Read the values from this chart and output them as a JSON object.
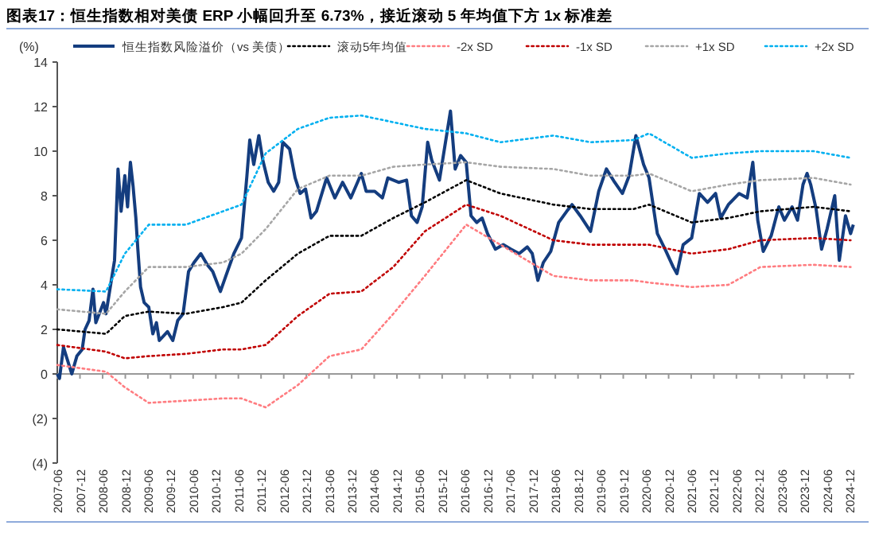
{
  "chart_data": {
    "type": "line",
    "title": "图表17：恒生指数相对美债 ERP 小幅回升至 6.73%，接近滚动 5 年均值下方 1x 标准差",
    "ylabel": "(%)",
    "legend": "top",
    "xlim": [
      "2007-06-01",
      "2025-01-07"
    ],
    "ylim": [
      -4,
      14
    ],
    "yticks": [
      {
        "value": -4,
        "label": "(4)"
      },
      {
        "value": -2,
        "label": "(2)"
      },
      0,
      2,
      4,
      6,
      8,
      10,
      12,
      14
    ],
    "xticks": [
      "2007-06",
      "2007-12",
      "2008-06",
      "2008-12",
      "2009-06",
      "2009-12",
      "2010-06",
      "2010-12",
      "2011-06",
      "2011-12",
      "2012-06",
      "2012-12",
      "2013-06",
      "2013-12",
      "2014-06",
      "2014-12",
      "2015-06",
      "2015-12",
      "2016-06",
      "2016-12",
      "2017-06",
      "2017-12",
      "2018-06",
      "2018-12",
      "2019-06",
      "2019-12",
      "2020-06",
      "2020-12",
      "2021-06",
      "2021-12",
      "2022-06",
      "2022-12",
      "2023-06",
      "2023-12",
      "2024-06",
      "2024-12"
    ],
    "series": [
      {
        "name": "恒生指数风险溢价（vs 美债）",
        "color": "#143d7f",
        "line_style": "solid",
        "x": [
          "2007-06-01",
          "2007-06-19",
          "2007-07-21",
          "2007-09-26",
          "2007-11-06",
          "2007-12-19",
          "2008-01-11",
          "2008-02-13",
          "2008-03-15",
          "2008-04-07",
          "2008-06-08",
          "2008-06-28",
          "2008-08-13",
          "2008-09-05",
          "2008-10-03",
          "2008-10-28",
          "2008-11-27",
          "2008-12-19",
          "2009-01-11",
          "2009-02-02",
          "2009-02-24",
          "2009-03-12",
          "2009-04-03",
          "2009-05-02",
          "2009-06-08",
          "2009-07-11",
          "2009-08-09",
          "2009-09-01",
          "2009-11-06",
          "2009-12-19",
          "2010-01-28",
          "2010-03-12",
          "2010-04-25",
          "2010-06-08",
          "2010-08-02",
          "2010-09-23",
          "2010-11-06",
          "2011-01-07",
          "2011-02-20",
          "2011-04-25",
          "2011-06-26",
          "2011-07-18",
          "2011-08-09",
          "2011-09-01",
          "2011-10-03",
          "2011-11-13",
          "2011-12-15",
          "2012-01-28",
          "2012-03-12",
          "2012-04-21",
          "2012-05-24",
          "2012-07-18",
          "2012-09-01",
          "2012-10-11",
          "2012-11-24",
          "2013-01-07",
          "2013-02-20",
          "2013-05-13",
          "2013-07-18",
          "2013-09-19",
          "2013-11-24",
          "2014-02-17",
          "2014-03-28",
          "2014-06-05",
          "2014-08-06",
          "2014-09-19",
          "2014-12-15",
          "2015-02-17",
          "2015-03-28",
          "2015-05-13",
          "2015-06-23",
          "2015-08-06",
          "2015-09-08",
          "2015-11-09",
          "2016-02-06",
          "2016-03-15",
          "2016-04-28",
          "2016-06-12",
          "2016-07-21",
          "2016-09-05",
          "2016-10-18",
          "2016-12-01",
          "2017-02-02",
          "2017-04-07",
          "2017-06-08",
          "2017-08-13",
          "2017-10-18",
          "2017-11-27",
          "2018-01-11",
          "2018-02-24",
          "2018-04-25",
          "2018-06-28",
          "2018-09-01",
          "2018-10-14",
          "2018-12-19",
          "2019-03-12",
          "2019-05-17",
          "2019-07-18",
          "2019-09-23",
          "2019-11-24",
          "2020-01-18",
          "2020-03-12",
          "2020-05-13",
          "2020-06-26",
          "2020-09-01",
          "2020-11-02",
          "2021-01-07",
          "2021-02-06",
          "2021-03-28",
          "2021-06-05",
          "2021-08-06",
          "2021-10-11",
          "2021-12-15",
          "2022-01-25",
          "2022-03-28",
          "2022-06-23",
          "2022-08-27",
          "2022-10-11",
          "2022-11-20",
          "2023-01-03",
          "2023-03-08",
          "2023-05-09",
          "2023-06-23",
          "2023-08-24",
          "2023-10-07",
          "2023-11-20",
          "2023-12-23",
          "2024-01-21",
          "2024-03-05",
          "2024-04-18",
          "2024-06-01",
          "2024-08-02",
          "2024-09-08",
          "2024-10-28",
          "2024-12-08",
          "2024-12-30"
        ],
        "values": [
          0,
          -0.2,
          1.2,
          0,
          0.8,
          1.1,
          2.0,
          2.4,
          3.8,
          2.3,
          3.2,
          2.7,
          4.3,
          5.1,
          9.2,
          7.3,
          8.9,
          7.5,
          9.5,
          8.4,
          7.0,
          5.6,
          3.9,
          3.2,
          3.0,
          1.8,
          2.3,
          1.5,
          1.9,
          1.5,
          2.4,
          2.7,
          4.6,
          5.0,
          5.4,
          4.9,
          4.6,
          3.7,
          4.4,
          5.4,
          6.1,
          7.5,
          8.9,
          10.5,
          9.4,
          10.7,
          9.6,
          8.6,
          8.2,
          8.6,
          10.4,
          10.1,
          8.8,
          8.1,
          8.3,
          7.0,
          7.3,
          8.8,
          7.9,
          8.6,
          7.9,
          9.0,
          8.2,
          8.2,
          7.9,
          8.8,
          8.6,
          8.7,
          7.1,
          6.8,
          7.5,
          10.4,
          9.6,
          8.7,
          11.8,
          9.2,
          9.8,
          9.5,
          7.1,
          6.8,
          7.0,
          6.3,
          5.6,
          5.8,
          5.6,
          5.4,
          5.7,
          5.4,
          4.2,
          5.0,
          5.5,
          6.8,
          7.3,
          7.6,
          7.1,
          6.4,
          8.2,
          9.2,
          8.6,
          8.1,
          8.9,
          10.7,
          9.4,
          8.8,
          6.3,
          5.6,
          4.8,
          4.5,
          5.8,
          6.1,
          8.1,
          7.7,
          8.1,
          7.0,
          7.6,
          8.1,
          7.9,
          9.5,
          6.9,
          5.5,
          6.2,
          7.5,
          6.9,
          7.5,
          6.9,
          8.5,
          9.0,
          8.5,
          7.4,
          5.6,
          6.5,
          8.0,
          5.1,
          7.1,
          6.3,
          6.7
        ]
      },
      {
        "name": "滚动5年均值",
        "color": "#000000",
        "line_style": "dotted",
        "x": [
          "2007-06-01",
          "2008-06-28",
          "2008-11-27",
          "2009-06-08",
          "2010-04-03",
          "2011-01-28",
          "2011-06-26",
          "2012-01-07",
          "2012-09-23",
          "2013-06-05",
          "2014-02-17",
          "2014-11-02",
          "2015-07-14",
          "2016-06-12",
          "2017-03-15",
          "2018-05-17",
          "2019-03-12",
          "2020-02-20",
          "2020-06-26",
          "2021-06-05",
          "2022-03-28",
          "2022-12-12",
          "2024-02-13",
          "2024-12-08"
        ],
        "values": [
          2.0,
          1.8,
          2.6,
          2.8,
          2.7,
          3.0,
          3.2,
          4.2,
          5.4,
          6.2,
          6.2,
          7.0,
          7.7,
          8.7,
          8.1,
          7.6,
          7.4,
          7.4,
          7.6,
          6.8,
          7.0,
          7.3,
          7.5,
          7.3
        ]
      },
      {
        "name": "-2x SD",
        "color": "#ff7c80",
        "line_style": "dotted",
        "x": [
          "2007-06-01",
          "2008-06-28",
          "2008-11-27",
          "2009-06-08",
          "2010-04-03",
          "2011-01-28",
          "2011-06-26",
          "2012-01-07",
          "2012-09-23",
          "2013-06-05",
          "2014-02-17",
          "2014-11-02",
          "2015-07-14",
          "2016-06-12",
          "2017-03-15",
          "2018-05-17",
          "2019-03-12",
          "2020-02-20",
          "2020-06-26",
          "2021-06-05",
          "2022-03-28",
          "2022-12-12",
          "2024-02-13",
          "2024-12-08"
        ],
        "values": [
          0.4,
          0.1,
          -0.6,
          -1.3,
          -1.2,
          -1.1,
          -1.1,
          -1.5,
          -0.5,
          0.8,
          1.1,
          2.7,
          4.4,
          6.7,
          5.8,
          4.4,
          4.2,
          4.2,
          4.1,
          3.9,
          4.0,
          4.8,
          4.9,
          4.8
        ]
      },
      {
        "name": "-1x SD",
        "color": "#c00000",
        "line_style": "dotted",
        "x": [
          "2007-06-01",
          "2008-06-28",
          "2008-11-27",
          "2009-06-08",
          "2010-04-03",
          "2011-01-28",
          "2011-06-26",
          "2012-01-07",
          "2012-09-23",
          "2013-06-05",
          "2014-02-17",
          "2014-11-02",
          "2015-07-14",
          "2016-06-12",
          "2017-03-15",
          "2018-05-17",
          "2019-03-12",
          "2020-02-20",
          "2020-06-26",
          "2021-06-05",
          "2022-03-28",
          "2022-12-12",
          "2024-02-13",
          "2024-12-08"
        ],
        "values": [
          1.3,
          1.0,
          0.7,
          0.8,
          0.9,
          1.1,
          1.1,
          1.3,
          2.6,
          3.6,
          3.7,
          4.8,
          6.4,
          7.6,
          7.1,
          6.0,
          5.8,
          5.8,
          5.8,
          5.4,
          5.6,
          6.0,
          6.1,
          6.0
        ]
      },
      {
        "name": "+1x SD",
        "color": "#a6a6a6",
        "line_style": "dotted",
        "x": [
          "2007-06-01",
          "2008-06-28",
          "2008-11-27",
          "2009-06-08",
          "2010-04-03",
          "2011-01-28",
          "2011-06-26",
          "2012-01-07",
          "2012-09-23",
          "2013-06-05",
          "2014-02-17",
          "2014-11-02",
          "2015-07-14",
          "2016-06-12",
          "2017-03-15",
          "2018-05-17",
          "2019-03-12",
          "2020-02-20",
          "2020-06-26",
          "2021-06-05",
          "2022-03-28",
          "2022-12-12",
          "2024-02-13",
          "2024-12-08"
        ],
        "values": [
          2.9,
          2.7,
          3.7,
          4.8,
          4.8,
          5.0,
          5.4,
          6.5,
          8.3,
          8.9,
          8.9,
          9.3,
          9.4,
          9.5,
          9.3,
          9.2,
          8.9,
          8.9,
          9.0,
          8.2,
          8.5,
          8.7,
          8.8,
          8.5
        ]
      },
      {
        "name": "+2x SD",
        "color": "#00b0f0",
        "line_style": "dotted",
        "x": [
          "2007-06-01",
          "2008-06-28",
          "2008-11-27",
          "2009-06-08",
          "2010-04-03",
          "2011-01-28",
          "2011-06-26",
          "2012-01-07",
          "2012-09-23",
          "2013-06-05",
          "2014-02-17",
          "2014-11-02",
          "2015-07-14",
          "2016-06-12",
          "2017-03-15",
          "2018-05-17",
          "2019-03-12",
          "2020-02-20",
          "2020-06-26",
          "2021-06-05",
          "2022-03-28",
          "2022-12-12",
          "2024-02-13",
          "2024-12-08"
        ],
        "values": [
          3.8,
          3.7,
          5.4,
          6.7,
          6.7,
          7.3,
          7.6,
          9.9,
          11.0,
          11.5,
          11.6,
          11.3,
          11.0,
          10.8,
          10.4,
          10.7,
          10.4,
          10.5,
          10.8,
          9.7,
          9.9,
          10.0,
          10.0,
          9.7
        ]
      }
    ]
  }
}
